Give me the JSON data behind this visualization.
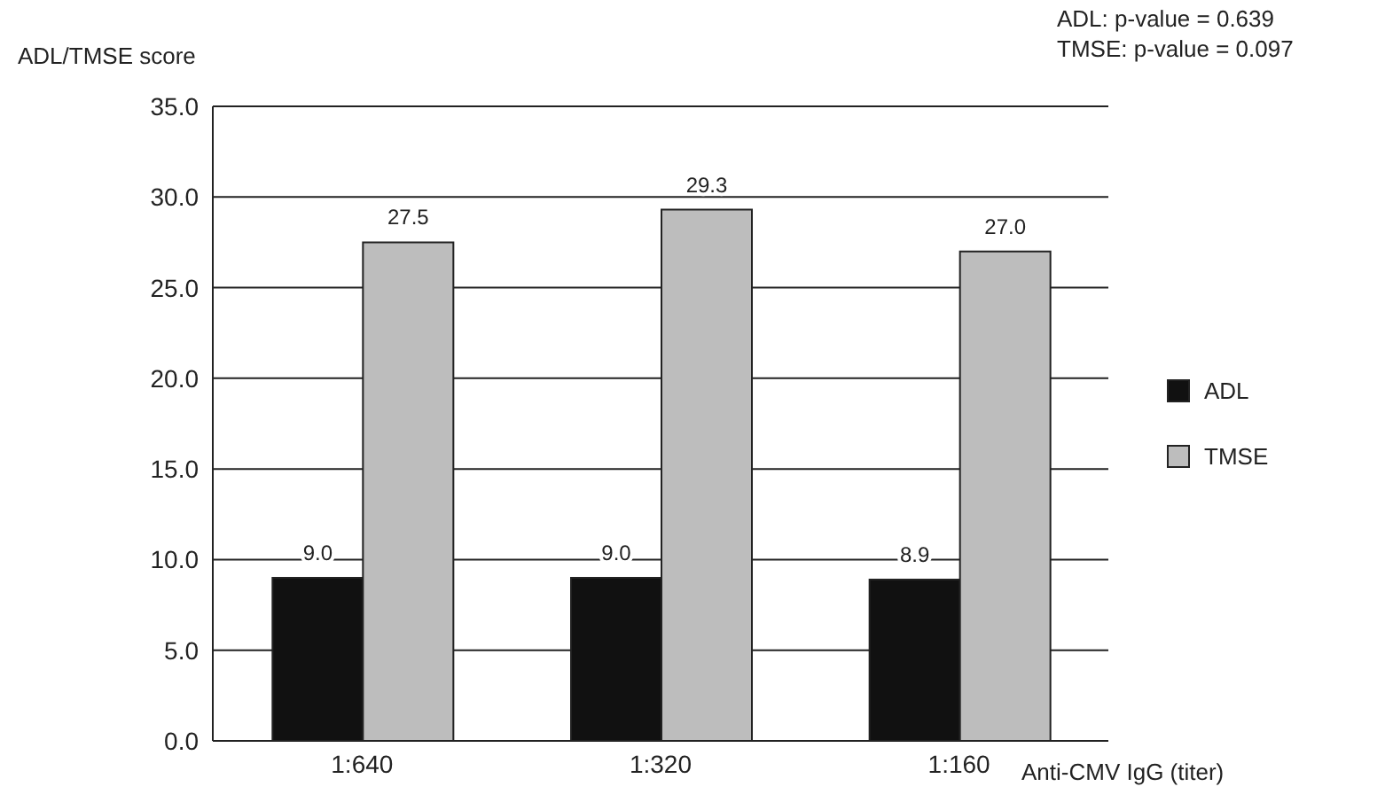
{
  "chart_data": {
    "type": "bar",
    "ylabel": "ADL/TMSE score",
    "xlabel": "Anti-CMV IgG (titer)",
    "annotations": [
      "ADL: p-value = 0.639",
      "TMSE: p-value = 0.097"
    ],
    "categories": [
      "1:640",
      "1:320",
      "1:160"
    ],
    "series": [
      {
        "name": "ADL",
        "color": "#111111",
        "values": [
          9.0,
          9.0,
          8.9
        ],
        "value_labels": [
          "9.0",
          "9.0",
          "8.9"
        ]
      },
      {
        "name": "TMSE",
        "color": "#bdbdbd",
        "values": [
          27.5,
          29.3,
          27.0
        ],
        "value_labels": [
          "27.5",
          "29.3",
          "27.0"
        ]
      }
    ],
    "ylim": [
      0,
      35
    ],
    "yticks": [
      {
        "value": 0,
        "label": "0.0"
      },
      {
        "value": 5,
        "label": "5.0"
      },
      {
        "value": 10,
        "label": "10.0"
      },
      {
        "value": 15,
        "label": "15.0"
      },
      {
        "value": 20,
        "label": "20.0"
      },
      {
        "value": 25,
        "label": "25.0"
      },
      {
        "value": 30,
        "label": "30.0"
      },
      {
        "value": 35,
        "label": "35.0"
      }
    ],
    "grid": "y",
    "legend": "right"
  }
}
